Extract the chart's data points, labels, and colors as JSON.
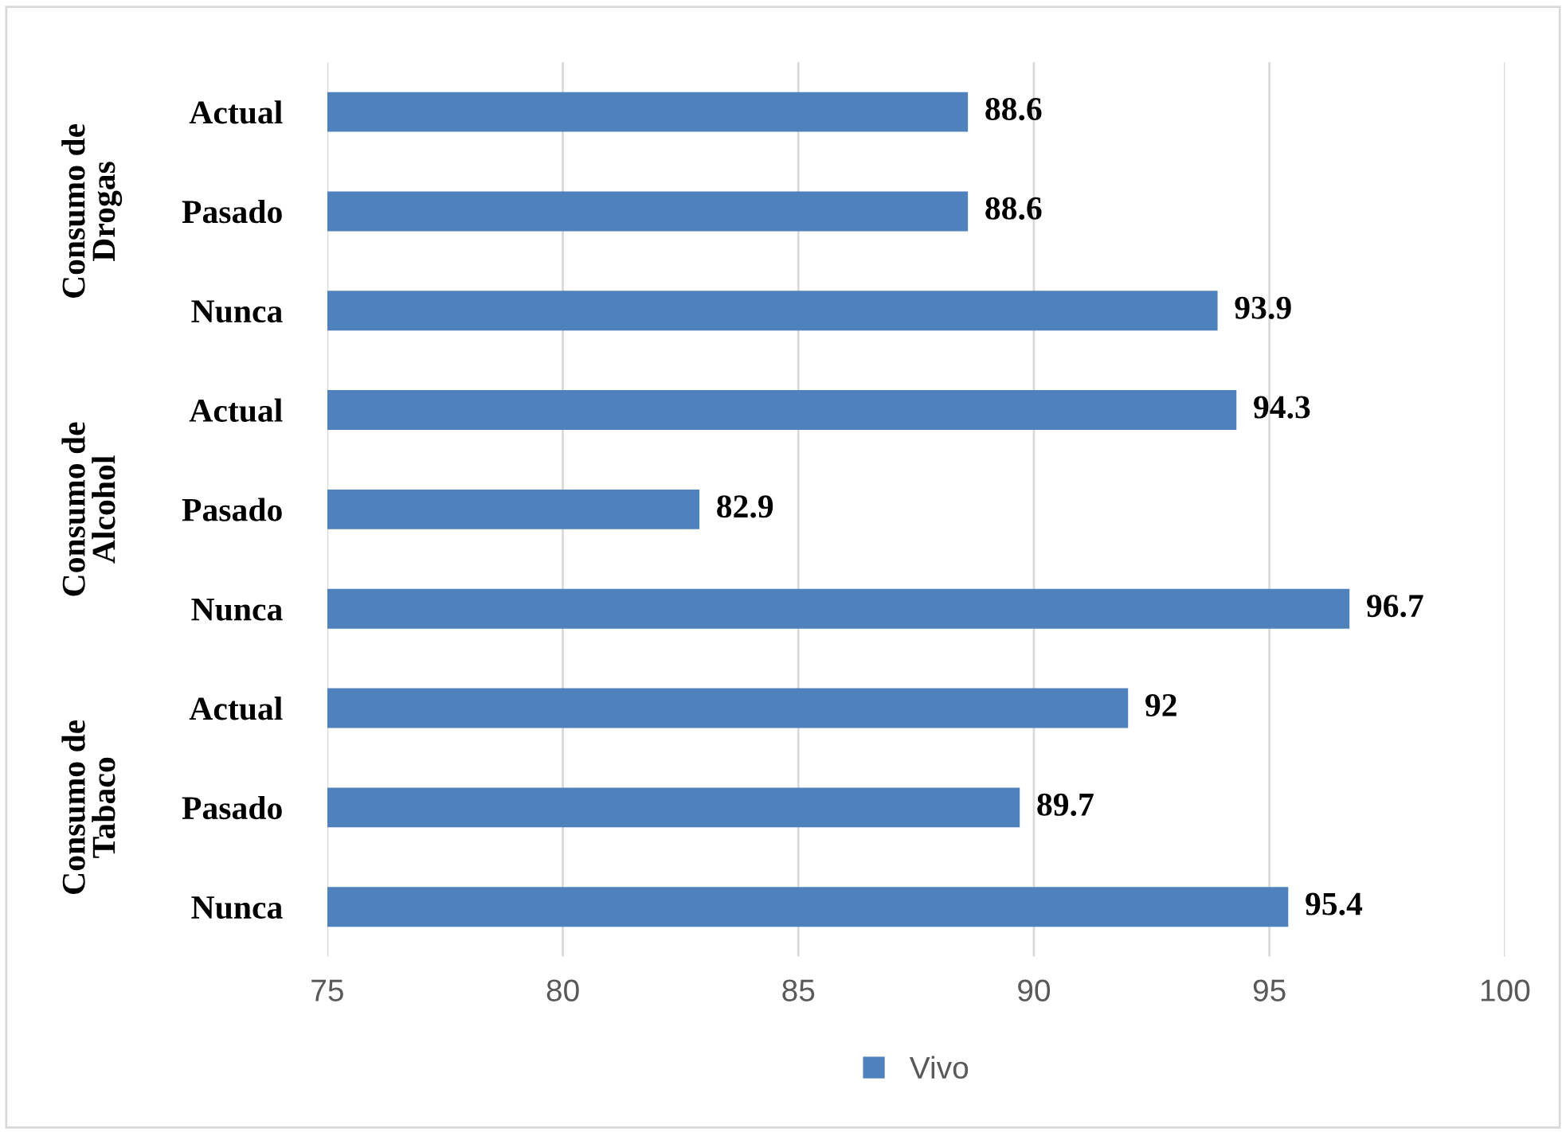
{
  "chart_data": {
    "type": "bar",
    "orientation": "horizontal",
    "categories": [
      "Actual",
      "Pasado",
      "Nunca",
      "Actual",
      "Pasado",
      "Nunca",
      "Actual",
      "Pasado",
      "Nunca"
    ],
    "series": [
      {
        "name": "Vivo",
        "color": "#4f81bd",
        "values": [
          88.6,
          88.6,
          93.9,
          94.3,
          82.9,
          96.7,
          92,
          89.7,
          95.4
        ]
      }
    ],
    "xlim": [
      75,
      100
    ],
    "xticks": [
      75,
      80,
      85,
      90,
      95,
      100
    ],
    "grid": "x",
    "legend": "bottom",
    "data_labels": true,
    "annotations": [
      "Consumo de Drogas",
      "Consumo de Alcohol",
      "Consumo de Tabaco"
    ]
  }
}
